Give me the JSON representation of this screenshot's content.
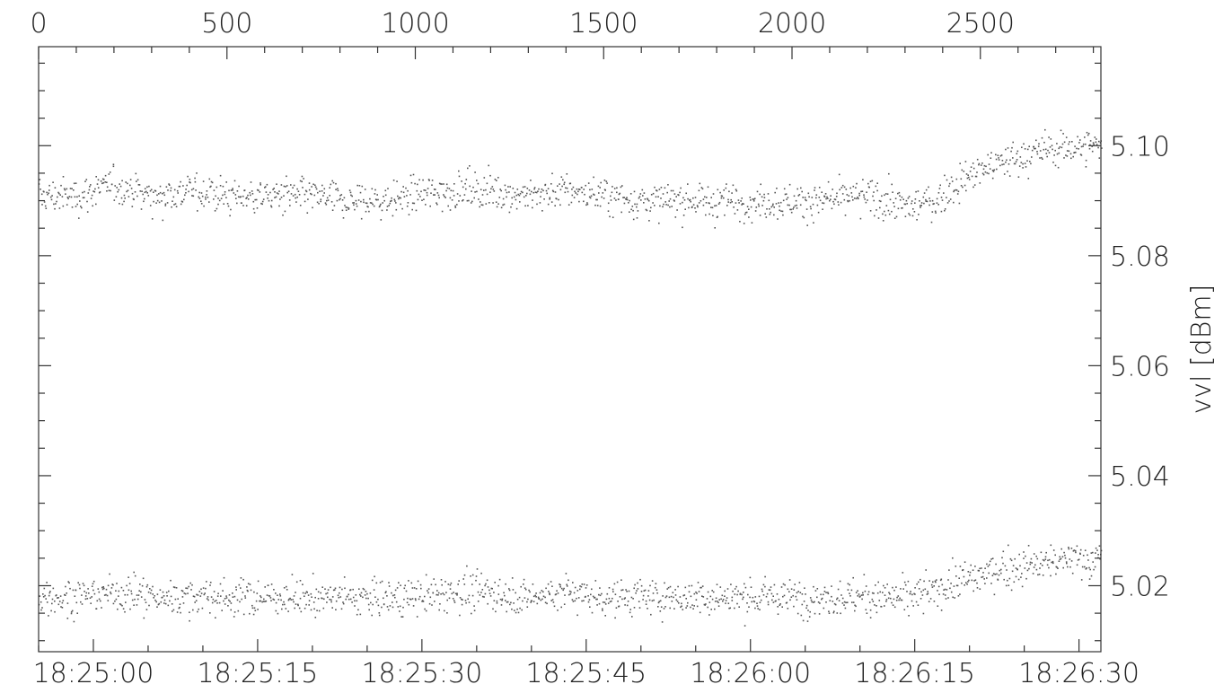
{
  "chart_data": {
    "type": "scatter",
    "title": "",
    "xlabel": "",
    "ylabel": "vvl [dBm]",
    "x_top": {
      "range": [
        0,
        2820
      ],
      "ticks": [
        0,
        500,
        1000,
        1500,
        2000,
        2500
      ],
      "tick_labels": [
        "0",
        "500",
        "1000",
        "1500",
        "2000",
        "2500"
      ]
    },
    "x_bottom": {
      "unit": "time of day",
      "range": [
        "18:24:55",
        "18:26:32"
      ],
      "ticks": [
        "18:25:00",
        "18:25:15",
        "18:25:30",
        "18:25:45",
        "18:26:00",
        "18:26:15",
        "18:26:30"
      ],
      "tick_labels": [
        "18:25:00",
        "18:25:15",
        "18:25:30",
        "18:25:45",
        "18:26:00",
        "18:26:15",
        "18:26:30"
      ]
    },
    "y_right": {
      "range": [
        5.008,
        5.118
      ],
      "ticks": [
        5.02,
        5.04,
        5.06,
        5.08,
        5.1
      ],
      "tick_labels": [
        "5.02",
        "5.04",
        "5.06",
        "5.08",
        "5.10"
      ]
    },
    "grid": false,
    "marker_color": "#555555",
    "series": [
      {
        "x": [
          0,
          100,
          200,
          300,
          400,
          500,
          600,
          700,
          800,
          900,
          1000,
          1100,
          1200,
          1300,
          1400,
          1500,
          1600,
          1700,
          1800,
          1900,
          2000,
          2100,
          2200,
          2300,
          2380,
          2450,
          2550,
          2650,
          2750,
          2820
        ],
        "values": [
          5.091,
          5.091,
          5.093,
          5.091,
          5.092,
          5.091,
          5.091,
          5.091,
          5.09,
          5.09,
          5.091,
          5.092,
          5.092,
          5.091,
          5.092,
          5.091,
          5.09,
          5.09,
          5.09,
          5.09,
          5.09,
          5.09,
          5.091,
          5.089,
          5.09,
          5.094,
          5.097,
          5.099,
          5.1,
          5.1
        ]
      },
      {
        "x": [
          0,
          100,
          200,
          300,
          400,
          500,
          600,
          700,
          800,
          900,
          1000,
          1100,
          1200,
          1300,
          1400,
          1500,
          1600,
          1700,
          1800,
          1900,
          2000,
          2100,
          2200,
          2300,
          2380,
          2450,
          2550,
          2650,
          2750,
          2820
        ],
        "values": [
          5.018,
          5.018,
          5.019,
          5.018,
          5.018,
          5.018,
          5.018,
          5.018,
          5.018,
          5.018,
          5.018,
          5.019,
          5.019,
          5.018,
          5.019,
          5.018,
          5.018,
          5.018,
          5.018,
          5.018,
          5.018,
          5.018,
          5.018,
          5.018,
          5.019,
          5.021,
          5.023,
          5.024,
          5.025,
          5.025
        ]
      }
    ]
  }
}
